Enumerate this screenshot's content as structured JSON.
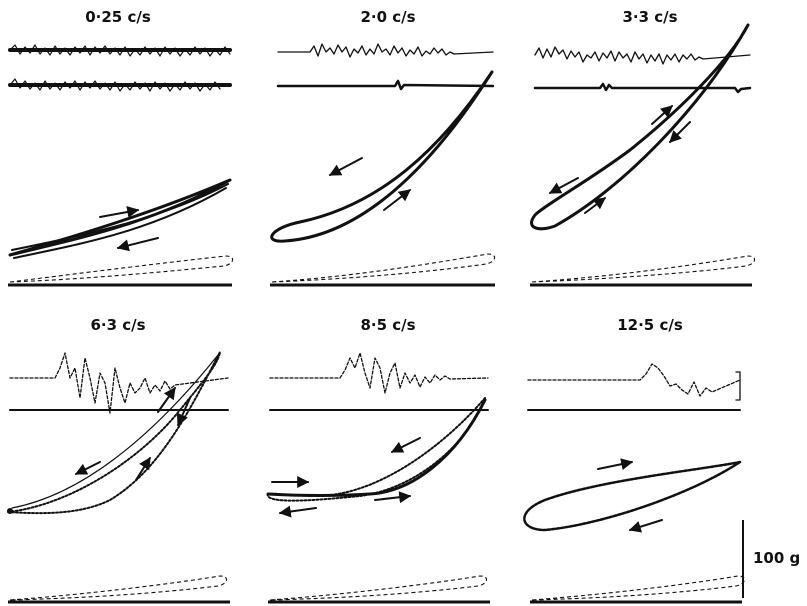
{
  "panels": [
    {
      "title": "0·25 c/s"
    },
    {
      "title": "2·0 c/s"
    },
    {
      "title": "3·3 c/s"
    },
    {
      "title": "6·3 c/s"
    },
    {
      "title": "8·5 c/s"
    },
    {
      "title": "12·5 c/s"
    }
  ],
  "scale_bar": {
    "label": "100 g"
  }
}
